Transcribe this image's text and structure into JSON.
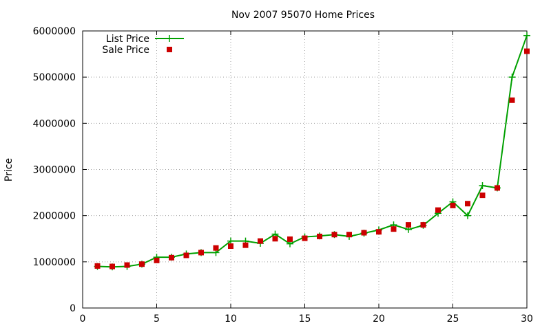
{
  "chart_data": {
    "type": "line",
    "title": "Nov 2007 95070 Home Prices",
    "xlabel": "",
    "ylabel": "Price",
    "xlim": [
      0,
      30
    ],
    "ylim": [
      0,
      6000000
    ],
    "xticks": [
      "0",
      "5",
      "10",
      "15",
      "20",
      "25",
      "30"
    ],
    "yticks": [
      "0",
      "1000000",
      "2000000",
      "3000000",
      "4000000",
      "5000000",
      "6000000"
    ],
    "grid": true,
    "legend_position": "top-left",
    "x": [
      1,
      2,
      3,
      4,
      5,
      6,
      7,
      8,
      9,
      10,
      11,
      12,
      13,
      14,
      15,
      16,
      17,
      18,
      19,
      20,
      21,
      22,
      23,
      24,
      25,
      26,
      27,
      28,
      29,
      30
    ],
    "series": [
      {
        "name": "List Price",
        "style": "lines+points",
        "marker": "plus",
        "color": "#00a000",
        "values": [
          900000,
          890000,
          900000,
          950000,
          1100000,
          1100000,
          1170000,
          1200000,
          1200000,
          1450000,
          1450000,
          1400000,
          1600000,
          1390000,
          1540000,
          1560000,
          1590000,
          1550000,
          1620000,
          1690000,
          1800000,
          1700000,
          1790000,
          2050000,
          2300000,
          2000000,
          2650000,
          2600000,
          5000000,
          5900000
        ]
      },
      {
        "name": "Sale Price",
        "style": "points",
        "marker": "square",
        "color": "#cc0000",
        "values": [
          910000,
          900000,
          930000,
          950000,
          1030000,
          1090000,
          1140000,
          1200000,
          1300000,
          1340000,
          1360000,
          1450000,
          1500000,
          1490000,
          1510000,
          1550000,
          1590000,
          1590000,
          1630000,
          1650000,
          1710000,
          1800000,
          1800000,
          2120000,
          2220000,
          2260000,
          2440000,
          2600000,
          4500000,
          5560000
        ]
      }
    ]
  }
}
